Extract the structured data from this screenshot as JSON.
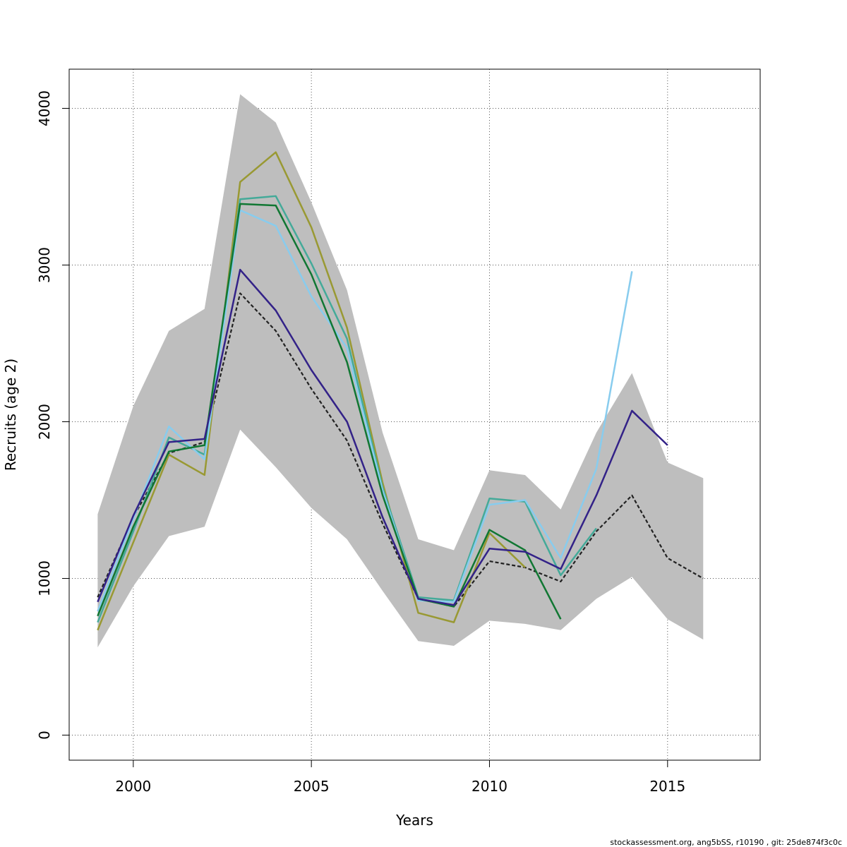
{
  "chart_data": {
    "type": "line",
    "xlabel": "Years",
    "ylabel": "Recruits (age 2)",
    "xlim": [
      1998.2,
      2017.6
    ],
    "ylim": [
      -160,
      4250
    ],
    "x_ticks": [
      2000,
      2005,
      2010,
      2015
    ],
    "y_ticks": [
      0,
      1000,
      2000,
      3000,
      4000
    ],
    "grid": true,
    "band": {
      "color": "#bebebe",
      "x": [
        1999,
        2000,
        2001,
        2002,
        2003,
        2004,
        2005,
        2006,
        2007,
        2008,
        2009,
        2010,
        2011,
        2012,
        2013,
        2014,
        2015,
        2016
      ],
      "upper": [
        1410,
        2100,
        2580,
        2720,
        4090,
        3910,
        3400,
        2840,
        1930,
        1250,
        1180,
        1690,
        1660,
        1440,
        1930,
        2310,
        1740,
        1640
      ],
      "lower": [
        560,
        950,
        1270,
        1330,
        1950,
        1710,
        1450,
        1250,
        920,
        600,
        570,
        730,
        710,
        670,
        870,
        1010,
        740,
        610
      ]
    },
    "series": [
      {
        "color": "#222222",
        "dashed": true,
        "x": [
          1999,
          2000,
          2001,
          2002,
          2003,
          2004,
          2005,
          2006,
          2007,
          2008,
          2009,
          2010,
          2011,
          2012,
          2013,
          2014,
          2015,
          2016
        ],
        "values": [
          880,
          1390,
          1800,
          1870,
          2820,
          2580,
          2210,
          1880,
          1350,
          870,
          820,
          1110,
          1070,
          980,
          1300,
          1530,
          1130,
          1000
        ]
      },
      {
        "color": "#999933",
        "x": [
          1999,
          2000,
          2001,
          2002,
          2003,
          2004,
          2005,
          2006,
          2007,
          2008,
          2009,
          2010,
          2011
        ],
        "values": [
          670,
          1230,
          1790,
          1660,
          3530,
          3720,
          3240,
          2600,
          1610,
          780,
          720,
          1290,
          1070
        ]
      },
      {
        "color": "#44aa99",
        "x": [
          1999,
          2000,
          2001,
          2002,
          2003,
          2004,
          2005,
          2006,
          2007,
          2008,
          2009,
          2010,
          2011,
          2012,
          2013
        ],
        "values": [
          720,
          1300,
          1900,
          1790,
          3420,
          3440,
          3010,
          2530,
          1580,
          880,
          860,
          1510,
          1490,
          1020,
          1320
        ]
      },
      {
        "color": "#88ccee",
        "x": [
          1999,
          2000,
          2001,
          2002,
          2003,
          2004,
          2005,
          2006,
          2007,
          2008,
          2009,
          2010,
          2011,
          2012,
          2013,
          2014
        ],
        "values": [
          790,
          1380,
          1970,
          1760,
          3350,
          3250,
          2800,
          2470,
          1560,
          860,
          850,
          1470,
          1500,
          1130,
          1700,
          2960
        ]
      },
      {
        "color": "#117733",
        "x": [
          1999,
          2000,
          2001,
          2002,
          2003,
          2004,
          2005,
          2006,
          2007,
          2008,
          2009,
          2010,
          2011,
          2012
        ],
        "values": [
          760,
          1330,
          1810,
          1850,
          3390,
          3380,
          2940,
          2380,
          1530,
          870,
          820,
          1310,
          1180,
          740
        ]
      },
      {
        "color": "#332288",
        "x": [
          1999,
          2000,
          2001,
          2002,
          2003,
          2004,
          2005,
          2006,
          2007,
          2008,
          2009,
          2010,
          2011,
          2012,
          2013,
          2014,
          2015
        ],
        "values": [
          850,
          1400,
          1870,
          1890,
          2970,
          2710,
          2330,
          2000,
          1390,
          870,
          830,
          1190,
          1170,
          1060,
          1530,
          2070,
          1850
        ]
      }
    ]
  },
  "footer_text": "stockassessment.org, ang5bSS, r10190 , git: 25de874f3c0c"
}
